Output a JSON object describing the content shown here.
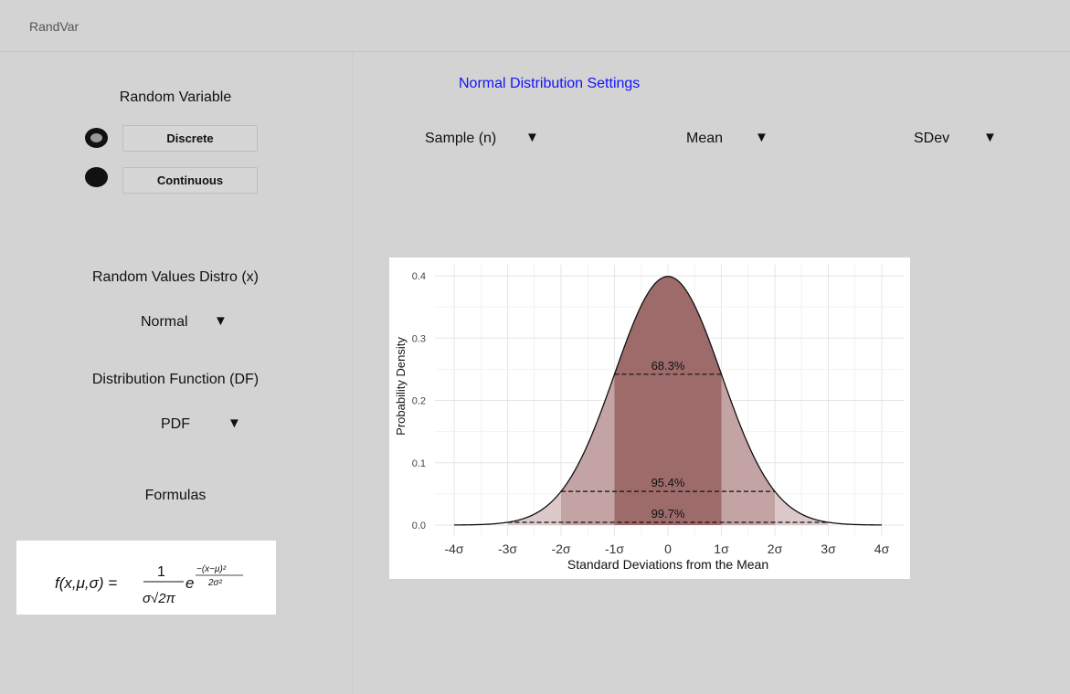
{
  "app": {
    "title": "RandVar"
  },
  "left": {
    "random_variable_label": "Random Variable",
    "options": [
      {
        "label": "Discrete",
        "selected": true
      },
      {
        "label": "Continuous",
        "selected": false
      }
    ],
    "distro_label": "Random Values Distro (x)",
    "distro_value": "Normal",
    "df_label": "Distribution Function (DF)",
    "df_value": "PDF",
    "formulas_label": "Formulas"
  },
  "settings": {
    "title": "Normal Distribution Settings",
    "dropdowns": [
      {
        "label": "Sample (n)"
      },
      {
        "label": "Mean"
      },
      {
        "label": "SDev"
      }
    ]
  },
  "icons": {
    "dropdown_arrow": "▼"
  },
  "colors": {
    "curve_fill_dark": "#9e6b6b",
    "curve_fill_mid": "#c3a3a3",
    "curve_fill_light": "#ddc9c9",
    "title_blue": "#1212ff"
  },
  "chart_data": {
    "type": "area",
    "xlabel": "Standard Deviations from the Mean",
    "ylabel": "Probability Density",
    "x_ticks": [
      "-4σ",
      "-3σ",
      "-2σ",
      "-1σ",
      "0",
      "1σ",
      "2σ",
      "3σ",
      "4σ"
    ],
    "y_ticks": [
      "0.0",
      "0.1",
      "0.2",
      "0.3",
      "0.4"
    ],
    "xlim": [
      -4,
      4
    ],
    "ylim": [
      0,
      0.4
    ],
    "series": [
      {
        "function": "standard normal pdf",
        "mean": 0,
        "sd": 1
      }
    ],
    "bands": [
      {
        "range": [
          -1,
          1
        ],
        "label": "68.3%",
        "level": 0.242
      },
      {
        "range": [
          -2,
          2
        ],
        "label": "95.4%",
        "level": 0.054
      },
      {
        "range": [
          -3,
          3
        ],
        "label": "99.7%",
        "level": 0.0044
      }
    ],
    "grid": true
  }
}
